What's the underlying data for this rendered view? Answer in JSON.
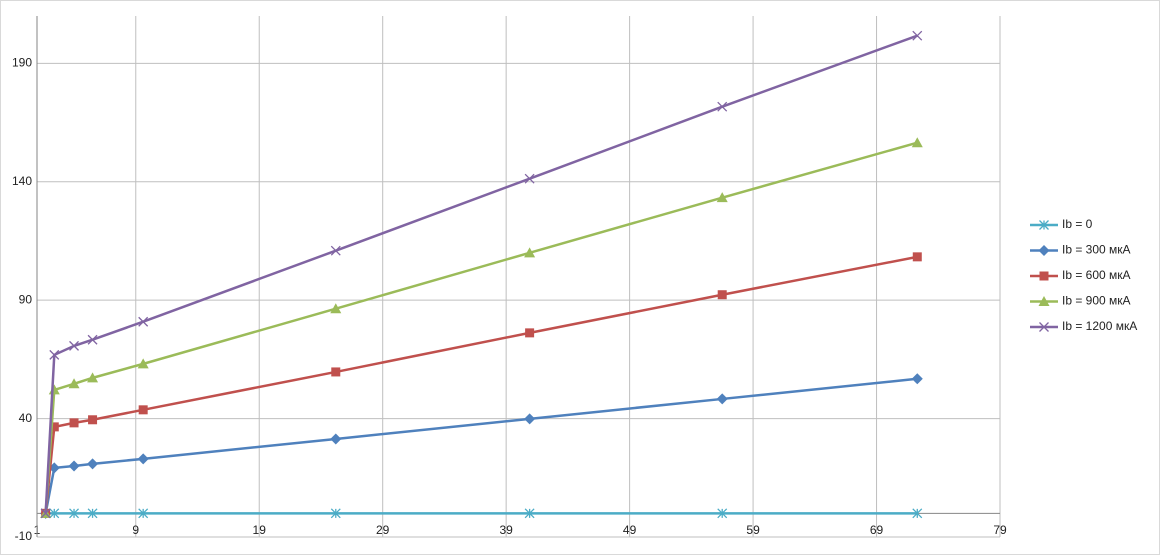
{
  "chart_data": {
    "type": "line",
    "x": [
      1.7,
      2.4,
      4,
      5.5,
      9.6,
      25.2,
      40.9,
      56.5,
      72.3
    ],
    "xlim": [
      1,
      79
    ],
    "xticks": [
      1,
      9,
      19,
      29,
      39,
      49,
      59,
      69,
      79
    ],
    "ylim": [
      -10,
      210
    ],
    "yticks": [
      -10,
      40,
      90,
      140,
      190
    ],
    "grid": true,
    "legend": "right",
    "series": [
      {
        "name": "Ib = 0",
        "color": "#4bacc6",
        "marker": "star",
        "values": [
          0,
          0,
          0,
          0,
          0,
          0,
          0,
          0,
          0
        ]
      },
      {
        "name": "Ib = 300 мкА",
        "color": "#4f81bd",
        "marker": "diamond",
        "values": [
          0,
          19.2,
          20,
          20.9,
          23,
          31.4,
          39.9,
          48.3,
          56.8
        ]
      },
      {
        "name": "Ib = 600 мкА",
        "color": "#c0504d",
        "marker": "square",
        "values": [
          0,
          36.5,
          38.2,
          39.5,
          43.7,
          59.7,
          76.2,
          92.3,
          108.3
        ]
      },
      {
        "name": "Ib = 900 мкА",
        "color": "#9bbb59",
        "marker": "triangle",
        "values": [
          0,
          52.1,
          54.7,
          57.2,
          63.1,
          86.4,
          110,
          133.3,
          156.5
        ]
      },
      {
        "name": "Ib = 1200 мкА",
        "color": "#8064a2",
        "marker": "x",
        "values": [
          0,
          66.9,
          70.7,
          73.3,
          80.9,
          110.9,
          141.3,
          171.7,
          201.7
        ]
      }
    ]
  }
}
